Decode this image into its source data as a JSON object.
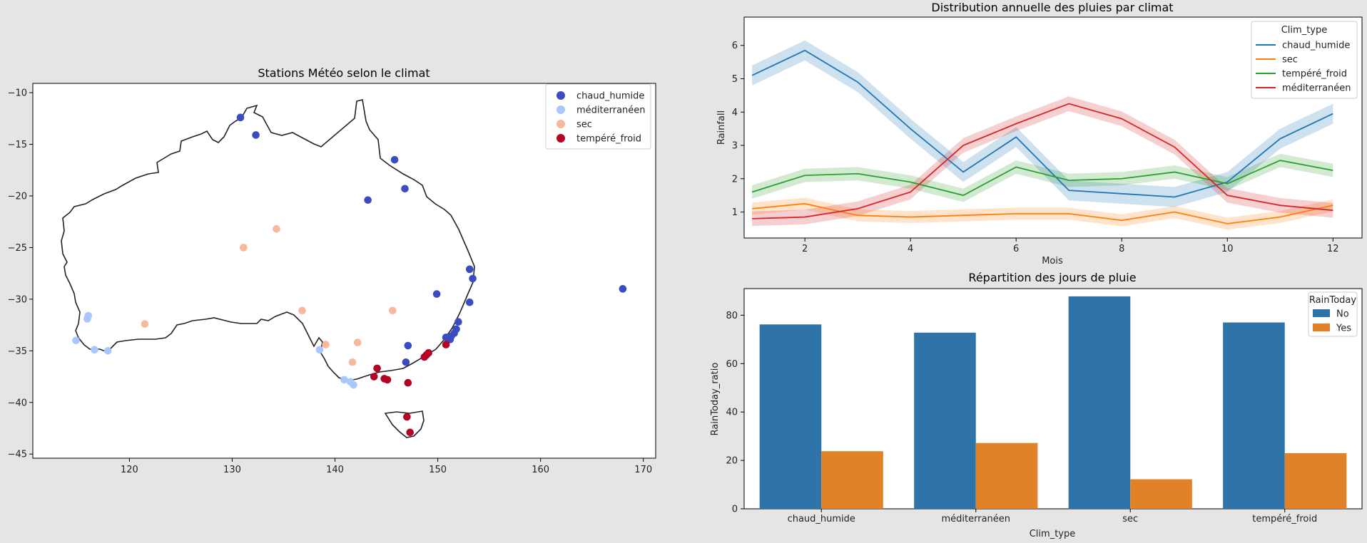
{
  "chart_data": [
    {
      "type": "scatter",
      "title": "Stations Météo selon le climat",
      "xlabel": "",
      "ylabel": "",
      "xlim": [
        110.6,
        171.2
      ],
      "ylim": [
        -45.4,
        -9.1
      ],
      "x_ticks": [
        120,
        130,
        140,
        150,
        160,
        170
      ],
      "y_ticks": [
        -10,
        -15,
        -20,
        -25,
        -30,
        -35,
        -40,
        -45
      ],
      "legend_position": "top-right",
      "series": [
        {
          "name": "chaud_humide",
          "color": "#3b4cc0",
          "points": [
            [
              130.8,
              -12.4
            ],
            [
              132.3,
              -14.1
            ],
            [
              145.8,
              -16.5
            ],
            [
              146.8,
              -19.3
            ],
            [
              143.2,
              -20.4
            ],
            [
              153.1,
              -27.1
            ],
            [
              153.4,
              -28.0
            ],
            [
              149.9,
              -29.5
            ],
            [
              153.1,
              -30.3
            ],
            [
              152.0,
              -32.2
            ],
            [
              151.8,
              -32.9
            ],
            [
              151.6,
              -33.3
            ],
            [
              151.3,
              -33.6
            ],
            [
              150.8,
              -33.7
            ],
            [
              151.2,
              -33.9
            ],
            [
              147.1,
              -34.5
            ],
            [
              146.9,
              -36.1
            ]
          ]
        },
        {
          "name": "méditerranéen",
          "color": "#aac7fd",
          "points": [
            [
              116.0,
              -31.6
            ],
            [
              115.9,
              -31.9
            ],
            [
              114.8,
              -34.0
            ],
            [
              116.6,
              -34.9
            ],
            [
              117.9,
              -35.0
            ],
            [
              138.5,
              -34.9
            ],
            [
              140.9,
              -37.8
            ],
            [
              141.5,
              -38.0
            ],
            [
              141.8,
              -38.3
            ]
          ]
        },
        {
          "name": "sec",
          "color": "#f7b89c",
          "points": [
            [
              134.3,
              -23.2
            ],
            [
              131.1,
              -25.0
            ],
            [
              136.8,
              -31.1
            ],
            [
              145.6,
              -31.1
            ],
            [
              121.5,
              -32.4
            ],
            [
              139.1,
              -34.4
            ],
            [
              142.2,
              -34.2
            ],
            [
              141.7,
              -36.1
            ]
          ]
        },
        {
          "name": "tempéré_froid",
          "color": "#b40426",
          "points": [
            [
              144.1,
              -36.7
            ],
            [
              143.8,
              -37.5
            ],
            [
              144.8,
              -37.7
            ],
            [
              145.1,
              -37.8
            ],
            [
              147.1,
              -38.1
            ],
            [
              149.1,
              -35.2
            ],
            [
              148.9,
              -35.4
            ],
            [
              148.7,
              -35.6
            ],
            [
              150.8,
              -34.4
            ],
            [
              147.0,
              -41.4
            ],
            [
              147.3,
              -42.9
            ]
          ]
        },
        {
          "name": "",
          "color": "#3b4cc0",
          "points": [
            [
              168.0,
              -29.0
            ]
          ]
        }
      ]
    },
    {
      "type": "line",
      "title": "Distribution annuelle des pluies par climat",
      "xlabel": "Mois",
      "ylabel": "Rainfall",
      "xlim": [
        0.85,
        12.55
      ],
      "ylim": [
        0.22,
        6.85
      ],
      "x": [
        1,
        2,
        3,
        4,
        5,
        6,
        7,
        8,
        9,
        10,
        11,
        12
      ],
      "x_ticks": [
        2,
        4,
        6,
        8,
        10,
        12
      ],
      "y_ticks": [
        1,
        2,
        3,
        4,
        5,
        6
      ],
      "legend_title": "Clim_type",
      "legend_position": "top-right",
      "series": [
        {
          "name": "chaud_humide",
          "color": "#1f77b4",
          "values": [
            5.1,
            5.85,
            4.9,
            3.5,
            2.2,
            3.25,
            1.65,
            1.55,
            1.45,
            1.9,
            3.2,
            3.95
          ],
          "band": 0.3
        },
        {
          "name": "sec",
          "color": "#ff7f0e",
          "values": [
            1.1,
            1.25,
            0.9,
            0.85,
            0.9,
            0.95,
            0.95,
            0.75,
            1.0,
            0.65,
            0.85,
            1.2
          ],
          "band": 0.18
        },
        {
          "name": "tempéré_froid",
          "color": "#2ca02c",
          "values": [
            1.6,
            2.1,
            2.15,
            1.9,
            1.5,
            2.35,
            1.95,
            2.0,
            2.2,
            1.85,
            2.55,
            2.25
          ],
          "band": 0.2
        },
        {
          "name": "méditerranéen",
          "color": "#d62728",
          "values": [
            0.8,
            0.85,
            1.1,
            1.6,
            3.0,
            3.65,
            4.25,
            3.8,
            2.95,
            1.5,
            1.2,
            1.05
          ],
          "band": 0.22
        }
      ]
    },
    {
      "type": "bar",
      "title": "Répartition des jours de pluie",
      "xlabel": "Clim_type",
      "ylabel": "RainToday_ratio",
      "ylim": [
        0,
        91
      ],
      "y_ticks": [
        0,
        20,
        40,
        60,
        80
      ],
      "categories": [
        "chaud_humide",
        "méditerranéen",
        "sec",
        "tempéré_froid"
      ],
      "legend_title": "RainToday",
      "legend_position": "top-right",
      "series": [
        {
          "name": "No",
          "color": "#2f74a8",
          "values": [
            76.2,
            72.8,
            87.8,
            77.0
          ]
        },
        {
          "name": "Yes",
          "color": "#e18229",
          "values": [
            23.8,
            27.2,
            12.2,
            23.0
          ]
        }
      ]
    }
  ]
}
